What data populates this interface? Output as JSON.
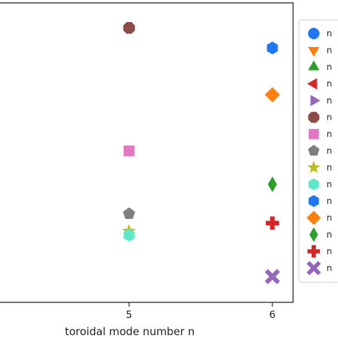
{
  "chart_data": {
    "type": "scatter",
    "xlabel": "toroidal mode number n",
    "ylabel": "",
    "title": "",
    "x_ticks": [
      "5",
      "6"
    ],
    "grid": false,
    "legend_position": "right",
    "series": [
      {
        "legend_label": "n",
        "marker": "circle",
        "color": "#1f77f4",
        "points": []
      },
      {
        "legend_label": "n",
        "marker": "triangle-down",
        "color": "#ff7f0e",
        "points": []
      },
      {
        "legend_label": "n",
        "marker": "triangle-up",
        "color": "#2ca02c",
        "points": []
      },
      {
        "legend_label": "n",
        "marker": "triangle-left",
        "color": "#d62728",
        "points": []
      },
      {
        "legend_label": "n",
        "marker": "triangle-right",
        "color": "#9467bd",
        "points": []
      },
      {
        "legend_label": "n",
        "marker": "octagon",
        "color": "#8c4b46",
        "points": [
          {
            "x": 5,
            "y": 0.965
          }
        ]
      },
      {
        "legend_label": "n",
        "marker": "square",
        "color": "#e377c2",
        "points": [
          {
            "x": 5,
            "y": 0.505
          }
        ]
      },
      {
        "legend_label": "n",
        "marker": "pentagon",
        "color": "#7f7f7f",
        "points": [
          {
            "x": 5,
            "y": 0.27
          }
        ]
      },
      {
        "legend_label": "n",
        "marker": "star",
        "color": "#bcbd22",
        "points": [
          {
            "x": 5,
            "y": 0.205
          }
        ]
      },
      {
        "legend_label": "n",
        "marker": "hexagon",
        "color": "#5ee8c8",
        "points": [
          {
            "x": 5,
            "y": 0.19
          }
        ]
      },
      {
        "legend_label": "n",
        "marker": "hexagon",
        "color": "#1f77f4",
        "points": [
          {
            "x": 6,
            "y": 0.89
          }
        ]
      },
      {
        "legend_label": "n",
        "marker": "diamond",
        "color": "#ff7f0e",
        "points": [
          {
            "x": 6,
            "y": 0.715
          }
        ]
      },
      {
        "legend_label": "n",
        "marker": "thin-diamond",
        "color": "#2ca02c",
        "points": [
          {
            "x": 6,
            "y": 0.38
          }
        ]
      },
      {
        "legend_label": "n",
        "marker": "plus",
        "color": "#d62728",
        "points": [
          {
            "x": 6,
            "y": 0.235
          }
        ]
      },
      {
        "legend_label": "n",
        "marker": "x",
        "color": "#9467bd",
        "points": [
          {
            "x": 6,
            "y": 0.035
          }
        ]
      }
    ]
  }
}
